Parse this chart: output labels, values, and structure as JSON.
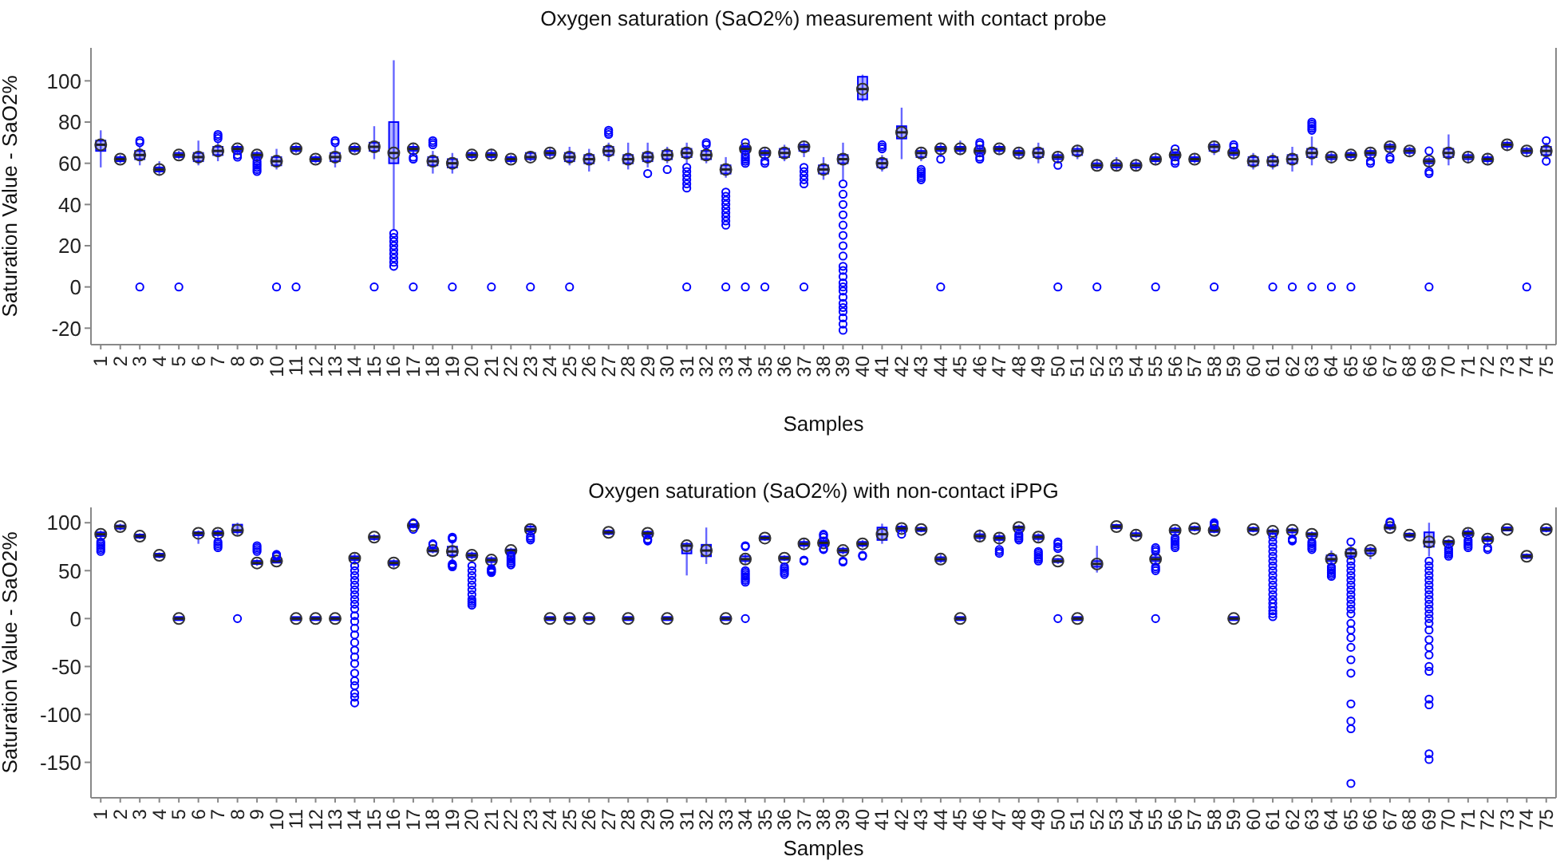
{
  "chart_data": [
    {
      "type": "box",
      "title": "Oxygen saturation (SaO2%) measurement with contact probe",
      "xlabel": "Samples",
      "ylabel": "Saturation Value - SaO2%",
      "color": "#0000ff",
      "ylim": [
        -28,
        116
      ],
      "yticks": [
        -20,
        0,
        20,
        40,
        60,
        80,
        100
      ],
      "categories": [
        "1",
        "2",
        "3",
        "4",
        "5",
        "6",
        "7",
        "8",
        "9",
        "10",
        "11",
        "12",
        "13",
        "14",
        "15",
        "16",
        "17",
        "18",
        "19",
        "20",
        "21",
        "22",
        "23",
        "24",
        "25",
        "26",
        "27",
        "28",
        "29",
        "30",
        "31",
        "32",
        "33",
        "34",
        "35",
        "36",
        "37",
        "38",
        "39",
        "40",
        "41",
        "42",
        "43",
        "44",
        "45",
        "46",
        "47",
        "48",
        "49",
        "50",
        "51",
        "52",
        "53",
        "54",
        "55",
        "56",
        "57",
        "58",
        "59",
        "60",
        "61",
        "62",
        "63",
        "64",
        "65",
        "66",
        "67",
        "68",
        "69",
        "70",
        "71",
        "72",
        "73",
        "74",
        "75"
      ],
      "boxes": [
        {
          "low": 58,
          "q1": 66,
          "median": 69,
          "q3": 71,
          "high": 76
        },
        {
          "low": 60,
          "q1": 61,
          "median": 62,
          "q3": 63,
          "high": 64
        },
        {
          "low": 59,
          "q1": 62,
          "median": 64,
          "q3": 66,
          "high": 68,
          "outliers": [
            0,
            70,
            71
          ]
        },
        {
          "low": 54,
          "q1": 56,
          "median": 57,
          "q3": 58,
          "high": 61
        },
        {
          "low": 62,
          "q1": 63,
          "median": 64,
          "q3": 65,
          "high": 66,
          "outliers": [
            0
          ]
        },
        {
          "low": 59,
          "q1": 61,
          "median": 63,
          "q3": 65,
          "high": 71
        },
        {
          "low": 61,
          "q1": 64,
          "median": 66,
          "q3": 68,
          "high": 70,
          "outliers": [
            72,
            73,
            74
          ]
        },
        {
          "low": 65,
          "q1": 66,
          "median": 67,
          "q3": 68,
          "high": 69,
          "outliers": [
            63,
            64
          ]
        },
        {
          "low": 62,
          "q1": 63,
          "median": 64,
          "q3": 65,
          "high": 66,
          "outliers": [
            56,
            57,
            58,
            59,
            60,
            61
          ]
        },
        {
          "low": 57,
          "q1": 59,
          "median": 61,
          "q3": 63,
          "high": 67,
          "outliers": [
            0
          ]
        },
        {
          "low": 65,
          "q1": 66,
          "median": 67,
          "q3": 68,
          "high": 69,
          "outliers": [
            0
          ]
        },
        {
          "low": 60,
          "q1": 61,
          "median": 62,
          "q3": 63,
          "high": 64
        },
        {
          "low": 58,
          "q1": 61,
          "median": 63,
          "q3": 65,
          "high": 68,
          "outliers": [
            70,
            71
          ]
        },
        {
          "low": 65,
          "q1": 66,
          "median": 67,
          "q3": 68,
          "high": 69
        },
        {
          "low": 62,
          "q1": 66,
          "median": 68,
          "q3": 70,
          "high": 78,
          "outliers": [
            0
          ]
        },
        {
          "low": 28,
          "q1": 60,
          "median": 65,
          "q3": 80,
          "high": 110,
          "outliers": [
            10,
            12,
            14,
            16,
            18,
            20,
            22,
            24,
            26
          ]
        },
        {
          "low": 64,
          "q1": 66,
          "median": 67,
          "q3": 68,
          "high": 70,
          "outliers": [
            0,
            62,
            63
          ]
        },
        {
          "low": 55,
          "q1": 59,
          "median": 61,
          "q3": 63,
          "high": 66,
          "outliers": [
            69,
            70,
            71
          ]
        },
        {
          "low": 55,
          "q1": 58,
          "median": 60,
          "q3": 62,
          "high": 65,
          "outliers": [
            0
          ]
        },
        {
          "low": 62,
          "q1": 63,
          "median": 64,
          "q3": 65,
          "high": 66
        },
        {
          "low": 61,
          "q1": 63,
          "median": 64,
          "q3": 65,
          "high": 67,
          "outliers": [
            0
          ]
        },
        {
          "low": 60,
          "q1": 61,
          "median": 62,
          "q3": 63,
          "high": 64
        },
        {
          "low": 61,
          "q1": 62,
          "median": 63,
          "q3": 65,
          "high": 66,
          "outliers": [
            0
          ]
        },
        {
          "low": 62,
          "q1": 64,
          "median": 65,
          "q3": 66,
          "high": 68
        },
        {
          "low": 59,
          "q1": 61,
          "median": 63,
          "q3": 65,
          "high": 68,
          "outliers": [
            0
          ]
        },
        {
          "low": 56,
          "q1": 60,
          "median": 62,
          "q3": 64,
          "high": 67
        },
        {
          "low": 61,
          "q1": 64,
          "median": 66,
          "q3": 68,
          "high": 70,
          "outliers": [
            74,
            75,
            76
          ]
        },
        {
          "low": 57,
          "q1": 60,
          "median": 62,
          "q3": 64,
          "high": 70
        },
        {
          "low": 58,
          "q1": 61,
          "median": 63,
          "q3": 65,
          "high": 70,
          "outliers": [
            55
          ]
        },
        {
          "low": 60,
          "q1": 62,
          "median": 64,
          "q3": 66,
          "high": 68,
          "outliers": [
            57
          ]
        },
        {
          "low": 60,
          "q1": 63,
          "median": 65,
          "q3": 67,
          "high": 70,
          "outliers": [
            0,
            48,
            50,
            52,
            54,
            56,
            58
          ]
        },
        {
          "low": 60,
          "q1": 62,
          "median": 64,
          "q3": 66,
          "high": 68,
          "outliers": [
            69,
            70
          ]
        },
        {
          "low": 53,
          "q1": 55,
          "median": 57,
          "q3": 59,
          "high": 63,
          "outliers": [
            0,
            30,
            32,
            34,
            36,
            38,
            40,
            42,
            44,
            46
          ]
        },
        {
          "low": 65,
          "q1": 66,
          "median": 67,
          "q3": 68,
          "high": 69,
          "outliers": [
            0,
            60,
            61,
            62,
            63,
            64,
            70
          ]
        },
        {
          "low": 62,
          "q1": 64,
          "median": 65,
          "q3": 66,
          "high": 68,
          "outliers": [
            0,
            60,
            61
          ]
        },
        {
          "low": 61,
          "q1": 63,
          "median": 65,
          "q3": 67,
          "high": 69
        },
        {
          "low": 63,
          "q1": 66,
          "median": 68,
          "q3": 69,
          "high": 71,
          "outliers": [
            0,
            50,
            52,
            54,
            56,
            58
          ]
        },
        {
          "low": 52,
          "q1": 55,
          "median": 57,
          "q3": 59,
          "high": 63
        },
        {
          "low": 52,
          "q1": 60,
          "median": 62,
          "q3": 64,
          "high": 70,
          "outliers": [
            -21,
            -18,
            -15,
            -12,
            -10,
            -8,
            -5,
            -2,
            0,
            2,
            5,
            8,
            10,
            15,
            20,
            25,
            30,
            35,
            40,
            45,
            50
          ]
        },
        {
          "low": 90,
          "q1": 91,
          "median": 96,
          "q3": 102,
          "high": 103
        },
        {
          "low": 56,
          "q1": 58,
          "median": 60,
          "q3": 62,
          "high": 64,
          "outliers": [
            67,
            68,
            69
          ]
        },
        {
          "low": 62,
          "q1": 72,
          "median": 75,
          "q3": 78,
          "high": 87
        },
        {
          "low": 61,
          "q1": 63,
          "median": 65,
          "q3": 66,
          "high": 68,
          "outliers": [
            52,
            53,
            54,
            55,
            56,
            57
          ]
        },
        {
          "low": 63,
          "q1": 66,
          "median": 67,
          "q3": 68,
          "high": 70,
          "outliers": [
            0,
            62
          ]
        },
        {
          "low": 64,
          "q1": 66,
          "median": 67,
          "q3": 68,
          "high": 71
        },
        {
          "low": 64,
          "q1": 65,
          "median": 66,
          "q3": 67,
          "high": 68,
          "outliers": [
            62,
            63,
            69,
            70
          ]
        },
        {
          "low": 64,
          "q1": 66,
          "median": 67,
          "q3": 68,
          "high": 69
        },
        {
          "low": 62,
          "q1": 64,
          "median": 65,
          "q3": 66,
          "high": 68
        },
        {
          "low": 60,
          "q1": 63,
          "median": 65,
          "q3": 67,
          "high": 70
        },
        {
          "low": 60,
          "q1": 62,
          "median": 63,
          "q3": 64,
          "high": 66,
          "outliers": [
            0,
            59
          ]
        },
        {
          "low": 62,
          "q1": 64,
          "median": 66,
          "q3": 67,
          "high": 69
        },
        {
          "low": 57,
          "q1": 58,
          "median": 59,
          "q3": 60,
          "high": 62,
          "outliers": [
            0
          ]
        },
        {
          "low": 56,
          "q1": 58,
          "median": 59,
          "q3": 60,
          "high": 63
        },
        {
          "low": 56,
          "q1": 58,
          "median": 59,
          "q3": 60,
          "high": 62
        },
        {
          "low": 59,
          "q1": 61,
          "median": 62,
          "q3": 63,
          "high": 65,
          "outliers": [
            0
          ]
        },
        {
          "low": 62,
          "q1": 63,
          "median": 64,
          "q3": 65,
          "high": 66,
          "outliers": [
            60,
            61,
            67
          ]
        },
        {
          "low": 60,
          "q1": 61,
          "median": 62,
          "q3": 63,
          "high": 65
        },
        {
          "low": 64,
          "q1": 66,
          "median": 68,
          "q3": 69,
          "high": 71,
          "outliers": [
            0
          ]
        },
        {
          "low": 62,
          "q1": 64,
          "median": 65,
          "q3": 66,
          "high": 67,
          "outliers": [
            68,
            69
          ]
        },
        {
          "low": 57,
          "q1": 59,
          "median": 61,
          "q3": 63,
          "high": 65
        },
        {
          "low": 57,
          "q1": 59,
          "median": 61,
          "q3": 63,
          "high": 65,
          "outliers": [
            0
          ]
        },
        {
          "low": 56,
          "q1": 60,
          "median": 62,
          "q3": 64,
          "high": 68,
          "outliers": [
            0
          ]
        },
        {
          "low": 59,
          "q1": 63,
          "median": 65,
          "q3": 67,
          "high": 73,
          "outliers": [
            0,
            76,
            77,
            78,
            79,
            80
          ]
        },
        {
          "low": 60,
          "q1": 62,
          "median": 63,
          "q3": 64,
          "high": 66,
          "outliers": [
            0
          ]
        },
        {
          "low": 62,
          "q1": 63,
          "median": 64,
          "q3": 65,
          "high": 66,
          "outliers": [
            0
          ]
        },
        {
          "low": 62,
          "q1": 64,
          "median": 65,
          "q3": 66,
          "high": 68,
          "outliers": [
            60,
            61
          ]
        },
        {
          "low": 65,
          "q1": 67,
          "median": 68,
          "q3": 69,
          "high": 70,
          "outliers": [
            62,
            63
          ]
        },
        {
          "low": 63,
          "q1": 65,
          "median": 66,
          "q3": 67,
          "high": 68
        },
        {
          "low": 58,
          "q1": 60,
          "median": 61,
          "q3": 62,
          "high": 63,
          "outliers": [
            0,
            55,
            56,
            66
          ]
        },
        {
          "low": 59,
          "q1": 63,
          "median": 65,
          "q3": 67,
          "high": 74
        },
        {
          "low": 60,
          "q1": 62,
          "median": 63,
          "q3": 64,
          "high": 66
        },
        {
          "low": 59,
          "q1": 61,
          "median": 62,
          "q3": 63,
          "high": 65
        },
        {
          "low": 66,
          "q1": 68,
          "median": 69,
          "q3": 70,
          "high": 71
        },
        {
          "low": 63,
          "q1": 65,
          "median": 66,
          "q3": 67,
          "high": 68,
          "outliers": [
            0
          ]
        },
        {
          "low": 62,
          "q1": 64,
          "median": 66,
          "q3": 68,
          "high": 70,
          "outliers": [
            61,
            71
          ]
        }
      ]
    },
    {
      "type": "box",
      "title": "Oxygen saturation (SaO2%) with non-contact iPPG",
      "xlabel": "Samples",
      "ylabel": "Saturation Value - SaO2%",
      "color": "#0000ff",
      "ylim": [
        -187,
        116
      ],
      "yticks": [
        -150,
        -100,
        -50,
        0,
        50,
        100
      ],
      "categories": [
        "1",
        "2",
        "3",
        "4",
        "5",
        "6",
        "7",
        "8",
        "9",
        "10",
        "11",
        "12",
        "13",
        "14",
        "15",
        "16",
        "17",
        "18",
        "19",
        "20",
        "21",
        "22",
        "23",
        "24",
        "25",
        "26",
        "27",
        "28",
        "29",
        "30",
        "31",
        "32",
        "33",
        "34",
        "35",
        "36",
        "37",
        "38",
        "39",
        "40",
        "41",
        "42",
        "43",
        "44",
        "45",
        "46",
        "47",
        "48",
        "49",
        "50",
        "51",
        "52",
        "53",
        "54",
        "55",
        "56",
        "57",
        "58",
        "59",
        "60",
        "61",
        "62",
        "63",
        "64",
        "65",
        "66",
        "67",
        "68",
        "69",
        "70",
        "71",
        "72",
        "73",
        "74",
        "75"
      ],
      "boxes": [
        {
          "low": 84,
          "q1": 86,
          "median": 88,
          "q3": 90,
          "high": 92,
          "outliers": [
            70,
            72,
            74,
            76,
            78,
            80
          ]
        },
        {
          "low": 92,
          "q1": 94,
          "median": 96,
          "q3": 97,
          "high": 99
        },
        {
          "low": 83,
          "q1": 85,
          "median": 86,
          "q3": 87,
          "high": 89
        },
        {
          "low": 63,
          "q1": 65,
          "median": 66,
          "q3": 67,
          "high": 69
        },
        {
          "low": 0,
          "q1": 0,
          "median": 0,
          "q3": 0,
          "high": 0
        },
        {
          "low": 78,
          "q1": 87,
          "median": 89,
          "q3": 90,
          "high": 92
        },
        {
          "low": 85,
          "q1": 87,
          "median": 89,
          "q3": 91,
          "high": 93,
          "outliers": [
            74,
            76,
            78,
            80
          ]
        },
        {
          "low": 87,
          "q1": 90,
          "median": 92,
          "q3": 98,
          "high": 100,
          "outliers": [
            0
          ]
        },
        {
          "low": 55,
          "q1": 57,
          "median": 58,
          "q3": 60,
          "high": 62,
          "outliers": [
            70,
            72,
            74,
            76
          ]
        },
        {
          "low": 58,
          "q1": 59,
          "median": 60,
          "q3": 61,
          "high": 63,
          "outliers": [
            65,
            66,
            67
          ]
        },
        {
          "low": 0,
          "q1": 0,
          "median": 0,
          "q3": 0,
          "high": 0
        },
        {
          "low": 0,
          "q1": 0,
          "median": 0,
          "q3": 0,
          "high": 0
        },
        {
          "low": 0,
          "q1": 0,
          "median": 0,
          "q3": 0,
          "high": 0
        },
        {
          "low": 58,
          "q1": 61,
          "median": 63,
          "q3": 65,
          "high": 68,
          "outliers": [
            -88,
            -82,
            -78,
            -70,
            -65,
            -57,
            -47,
            -40,
            -33,
            -25,
            -17,
            -10,
            -3,
            3,
            10,
            15,
            20,
            25,
            30,
            35,
            40,
            45,
            50,
            55
          ]
        },
        {
          "low": 81,
          "q1": 83,
          "median": 85,
          "q3": 86,
          "high": 88
        },
        {
          "low": 53,
          "q1": 56,
          "median": 58,
          "q3": 60,
          "high": 62
        },
        {
          "low": 94,
          "q1": 96,
          "median": 97,
          "q3": 98,
          "high": 99,
          "outliers": [
            93,
            100
          ]
        },
        {
          "low": 68,
          "q1": 70,
          "median": 71,
          "q3": 73,
          "high": 76,
          "outliers": [
            77,
            78
          ]
        },
        {
          "low": 60,
          "q1": 66,
          "median": 70,
          "q3": 75,
          "high": 80,
          "outliers": [
            54,
            55,
            56,
            57,
            83,
            84,
            85
          ]
        },
        {
          "low": 62,
          "q1": 64,
          "median": 66,
          "q3": 68,
          "high": 70,
          "outliers": [
            14,
            16,
            18,
            20,
            25,
            30,
            35,
            40,
            45,
            50,
            55
          ]
        },
        {
          "low": 56,
          "q1": 59,
          "median": 61,
          "q3": 63,
          "high": 65,
          "outliers": [
            48,
            49,
            50,
            51,
            52
          ]
        },
        {
          "low": 67,
          "q1": 69,
          "median": 71,
          "q3": 72,
          "high": 74,
          "outliers": [
            56,
            58,
            60,
            62,
            64,
            66
          ]
        },
        {
          "low": 88,
          "q1": 91,
          "median": 93,
          "q3": 96,
          "high": 99,
          "outliers": [
            82,
            84,
            86
          ]
        },
        {
          "low": 0,
          "q1": 0,
          "median": 0,
          "q3": 0,
          "high": 0
        },
        {
          "low": 0,
          "q1": 0,
          "median": 0,
          "q3": 0,
          "high": 0
        },
        {
          "low": 0,
          "q1": 0,
          "median": 0,
          "q3": 0,
          "high": 0
        },
        {
          "low": 87,
          "q1": 89,
          "median": 90,
          "q3": 91,
          "high": 93
        },
        {
          "low": 0,
          "q1": 0,
          "median": 0,
          "q3": 0,
          "high": 0
        },
        {
          "low": 86,
          "q1": 88,
          "median": 89,
          "q3": 90,
          "high": 92,
          "outliers": [
            81,
            82,
            83
          ]
        },
        {
          "low": 0,
          "q1": 0,
          "median": 0,
          "q3": 0,
          "high": 0
        },
        {
          "low": 45,
          "q1": 68,
          "median": 76,
          "q3": 78,
          "high": 80
        },
        {
          "low": 57,
          "q1": 65,
          "median": 71,
          "q3": 77,
          "high": 95
        },
        {
          "low": 0,
          "q1": 0,
          "median": 0,
          "q3": 0,
          "high": 0
        },
        {
          "low": 57,
          "q1": 60,
          "median": 62,
          "q3": 65,
          "high": 68,
          "outliers": [
            0,
            38,
            40,
            42,
            44,
            46,
            48,
            50,
            75,
            76
          ]
        },
        {
          "low": 81,
          "q1": 83,
          "median": 84,
          "q3": 85,
          "high": 87
        },
        {
          "low": 60,
          "q1": 62,
          "median": 63,
          "q3": 64,
          "high": 66,
          "outliers": [
            46,
            48,
            50,
            52,
            54
          ]
        },
        {
          "low": 73,
          "q1": 76,
          "median": 78,
          "q3": 80,
          "high": 84,
          "outliers": [
            60,
            61
          ]
        },
        {
          "low": 75,
          "q1": 77,
          "median": 79,
          "q3": 81,
          "high": 83,
          "outliers": [
            72,
            73,
            85,
            87,
            88
          ]
        },
        {
          "low": 67,
          "q1": 69,
          "median": 71,
          "q3": 73,
          "high": 75,
          "outliers": [
            59,
            60
          ]
        },
        {
          "low": 74,
          "q1": 76,
          "median": 78,
          "q3": 80,
          "high": 82,
          "outliers": [
            65,
            66
          ]
        },
        {
          "low": 78,
          "q1": 82,
          "median": 88,
          "q3": 95,
          "high": 99
        },
        {
          "low": 89,
          "q1": 92,
          "median": 94,
          "q3": 96,
          "high": 98,
          "outliers": [
            88
          ]
        },
        {
          "low": 90,
          "q1": 92,
          "median": 93,
          "q3": 94,
          "high": 96
        },
        {
          "low": 58,
          "q1": 60,
          "median": 62,
          "q3": 64,
          "high": 67
        },
        {
          "low": 0,
          "q1": 0,
          "median": 0,
          "q3": 0,
          "high": 0
        },
        {
          "low": 81,
          "q1": 84,
          "median": 86,
          "q3": 88,
          "high": 93
        },
        {
          "low": 77,
          "q1": 82,
          "median": 84,
          "q3": 86,
          "high": 90,
          "outliers": [
            68,
            70,
            72
          ]
        },
        {
          "low": 90,
          "q1": 93,
          "median": 95,
          "q3": 96,
          "high": 98,
          "outliers": [
            82,
            84,
            86,
            88
          ]
        },
        {
          "low": 80,
          "q1": 83,
          "median": 85,
          "q3": 87,
          "high": 89,
          "outliers": [
            60,
            62,
            64,
            66,
            68,
            70
          ]
        },
        {
          "low": 57,
          "q1": 59,
          "median": 60,
          "q3": 62,
          "high": 63,
          "outliers": [
            0,
            73,
            75,
            78,
            80
          ]
        },
        {
          "low": 0,
          "q1": 0,
          "median": 0,
          "q3": 0,
          "high": 0
        },
        {
          "low": 48,
          "q1": 54,
          "median": 57,
          "q3": 60,
          "high": 76
        },
        {
          "low": 93,
          "q1": 95,
          "median": 96,
          "q3": 97,
          "high": 99
        },
        {
          "low": 84,
          "q1": 86,
          "median": 87,
          "q3": 89,
          "high": 93
        },
        {
          "low": 58,
          "q1": 60,
          "median": 62,
          "q3": 64,
          "high": 67,
          "outliers": [
            0,
            50,
            52,
            54,
            70,
            72,
            74
          ]
        },
        {
          "low": 87,
          "q1": 90,
          "median": 92,
          "q3": 94,
          "high": 96,
          "outliers": [
            74,
            76,
            78,
            80,
            82,
            84
          ]
        },
        {
          "low": 91,
          "q1": 93,
          "median": 94,
          "q3": 95,
          "high": 97
        },
        {
          "low": 89,
          "q1": 91,
          "median": 92,
          "q3": 93,
          "high": 95,
          "outliers": [
            97,
            98,
            99,
            100
          ]
        },
        {
          "low": 0,
          "q1": 0,
          "median": 0,
          "q3": 0,
          "high": 0
        },
        {
          "low": 90,
          "q1": 92,
          "median": 93,
          "q3": 94,
          "high": 96
        },
        {
          "low": 87,
          "q1": 89,
          "median": 91,
          "q3": 92,
          "high": 94,
          "outliers": [
            2,
            5,
            8,
            12,
            16,
            20,
            25,
            30,
            35,
            40,
            45,
            50,
            55,
            60,
            65,
            70,
            75,
            80,
            85
          ]
        },
        {
          "low": 88,
          "q1": 90,
          "median": 92,
          "q3": 93,
          "high": 95,
          "outliers": [
            81,
            82,
            83
          ]
        },
        {
          "low": 84,
          "q1": 86,
          "median": 88,
          "q3": 89,
          "high": 91,
          "outliers": [
            72,
            74,
            76,
            78,
            80
          ]
        },
        {
          "low": 58,
          "q1": 60,
          "median": 62,
          "q3": 66,
          "high": 71,
          "outliers": [
            44,
            46,
            48,
            50,
            52,
            54
          ]
        },
        {
          "low": 62,
          "q1": 65,
          "median": 68,
          "q3": 72,
          "high": 76,
          "outliers": [
            -172,
            -115,
            -107,
            -89,
            -57,
            -43,
            -30,
            -20,
            -12,
            -5,
            5,
            10,
            15,
            20,
            25,
            30,
            35,
            40,
            45,
            50,
            55,
            60,
            80
          ]
        },
        {
          "low": 62,
          "q1": 68,
          "median": 71,
          "q3": 73,
          "high": 75
        },
        {
          "low": 92,
          "q1": 94,
          "median": 95,
          "q3": 97,
          "high": 99,
          "outliers": [
            100,
            101
          ]
        },
        {
          "low": 84,
          "q1": 86,
          "median": 87,
          "q3": 88,
          "high": 90
        },
        {
          "low": 65,
          "q1": 75,
          "median": 80,
          "q3": 90,
          "high": 100,
          "outliers": [
            -147,
            -141,
            -90,
            -84,
            -55,
            -50,
            -38,
            -30,
            -22,
            -12,
            -5,
            0,
            5,
            10,
            15,
            20,
            25,
            30,
            35,
            40,
            45,
            50,
            55,
            60
          ]
        },
        {
          "low": 75,
          "q1": 78,
          "median": 80,
          "q3": 81,
          "high": 83,
          "outliers": [
            65,
            67,
            69,
            71,
            73
          ]
        },
        {
          "low": 85,
          "q1": 87,
          "median": 89,
          "q3": 91,
          "high": 94,
          "outliers": [
            74,
            76,
            78,
            80,
            82
          ]
        },
        {
          "low": 79,
          "q1": 81,
          "median": 83,
          "q3": 85,
          "high": 87,
          "outliers": [
            72,
            74
          ]
        },
        {
          "low": 92,
          "q1": 93,
          "median": 93,
          "q3": 94,
          "high": 95
        },
        {
          "low": 62,
          "q1": 64,
          "median": 65,
          "q3": 66,
          "high": 68
        },
        {
          "low": 90,
          "q1": 92,
          "median": 93,
          "q3": 94,
          "high": 96
        }
      ]
    }
  ]
}
